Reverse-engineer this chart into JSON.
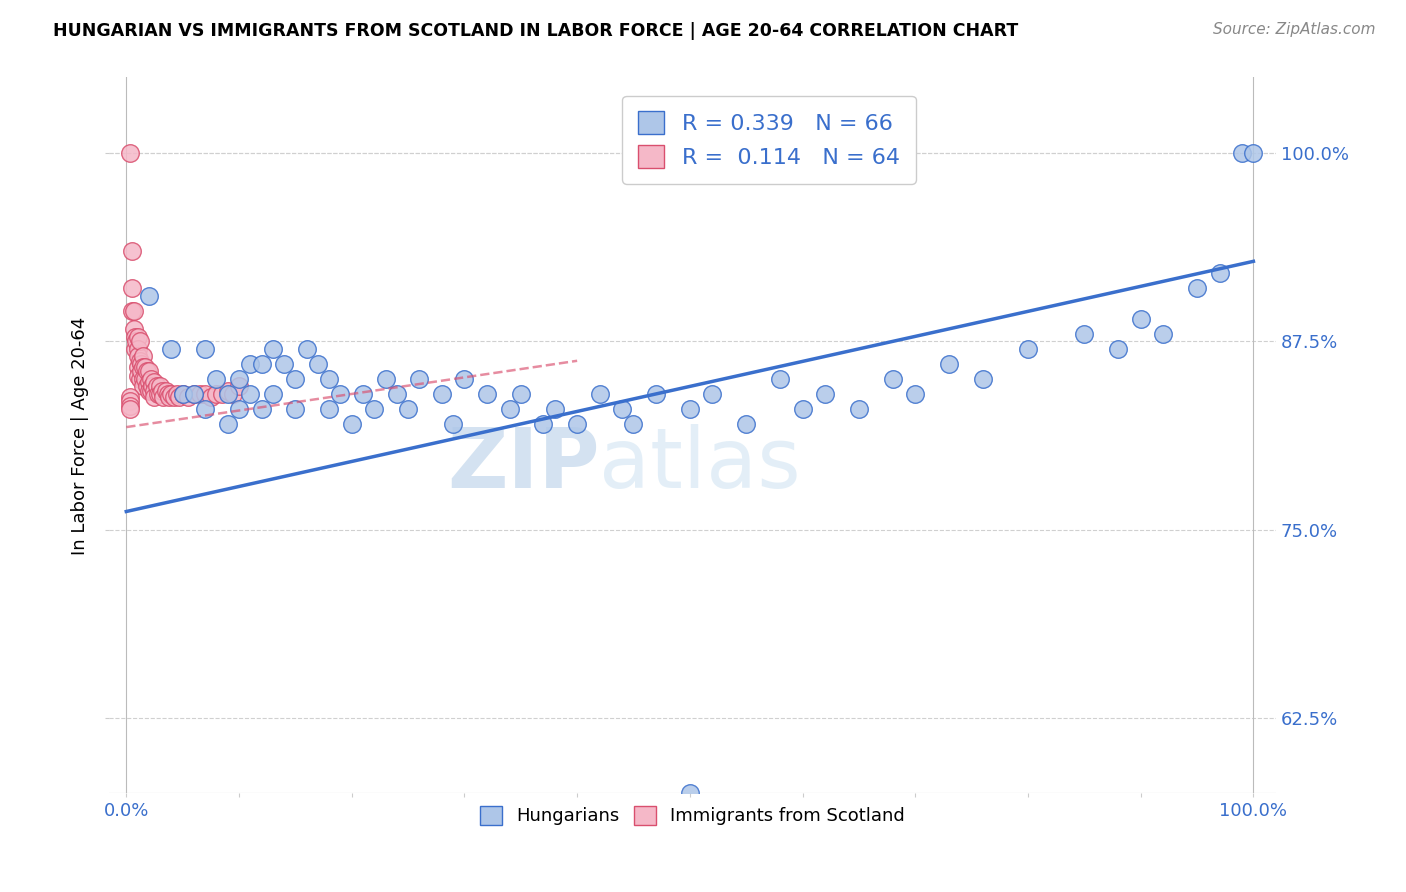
{
  "title": "HUNGARIAN VS IMMIGRANTS FROM SCOTLAND IN LABOR FORCE | AGE 20-64 CORRELATION CHART",
  "source": "Source: ZipAtlas.com",
  "ylabel": "In Labor Force | Age 20-64",
  "r_hungarian": 0.339,
  "n_hungarian": 66,
  "r_scotland": 0.114,
  "n_scotland": 64,
  "color_hungarian": "#aec6e8",
  "color_scotland": "#f5b8c8",
  "line_color_hungarian": "#3a6fcc",
  "line_color_scotland": "#d94f6e",
  "background_color": "#ffffff",
  "grid_color": "#d0d0d0",
  "watermark_zip": "ZIP",
  "watermark_atlas": "atlas",
  "yticks": [
    0.625,
    0.75,
    0.875,
    1.0
  ],
  "ytick_labels": [
    "62.5%",
    "75.0%",
    "87.5%",
    "100.0%"
  ],
  "ylim_low": 0.575,
  "ylim_high": 1.05,
  "xlim_low": -0.015,
  "xlim_high": 1.02,
  "hun_line_x0": 0.0,
  "hun_line_x1": 1.0,
  "hun_line_y0": 0.762,
  "hun_line_y1": 0.928,
  "sco_line_x0": 0.0,
  "sco_line_x1": 0.4,
  "sco_line_y0": 0.818,
  "sco_line_y1": 0.862,
  "hungarian_x": [
    0.02,
    0.04,
    0.05,
    0.06,
    0.07,
    0.07,
    0.08,
    0.09,
    0.09,
    0.1,
    0.1,
    0.11,
    0.11,
    0.12,
    0.12,
    0.13,
    0.13,
    0.14,
    0.15,
    0.15,
    0.16,
    0.17,
    0.18,
    0.18,
    0.19,
    0.2,
    0.21,
    0.22,
    0.23,
    0.24,
    0.25,
    0.26,
    0.28,
    0.29,
    0.3,
    0.32,
    0.34,
    0.35,
    0.37,
    0.38,
    0.4,
    0.42,
    0.44,
    0.45,
    0.47,
    0.5,
    0.52,
    0.55,
    0.58,
    0.6,
    0.62,
    0.65,
    0.68,
    0.7,
    0.73,
    0.76,
    0.8,
    0.85,
    0.88,
    0.9,
    0.92,
    0.95,
    0.97,
    0.99,
    1.0,
    0.5
  ],
  "hungarian_y": [
    0.905,
    0.87,
    0.84,
    0.84,
    0.87,
    0.83,
    0.85,
    0.84,
    0.82,
    0.85,
    0.83,
    0.86,
    0.84,
    0.86,
    0.83,
    0.87,
    0.84,
    0.86,
    0.85,
    0.83,
    0.87,
    0.86,
    0.85,
    0.83,
    0.84,
    0.82,
    0.84,
    0.83,
    0.85,
    0.84,
    0.83,
    0.85,
    0.84,
    0.82,
    0.85,
    0.84,
    0.83,
    0.84,
    0.82,
    0.83,
    0.82,
    0.84,
    0.83,
    0.82,
    0.84,
    0.83,
    0.84,
    0.82,
    0.85,
    0.83,
    0.84,
    0.83,
    0.85,
    0.84,
    0.86,
    0.85,
    0.87,
    0.88,
    0.87,
    0.89,
    0.88,
    0.91,
    0.92,
    1.0,
    1.0,
    0.575
  ],
  "scotland_x": [
    0.005,
    0.005,
    0.005,
    0.007,
    0.007,
    0.008,
    0.008,
    0.009,
    0.01,
    0.01,
    0.01,
    0.01,
    0.01,
    0.012,
    0.012,
    0.012,
    0.013,
    0.013,
    0.015,
    0.015,
    0.015,
    0.015,
    0.017,
    0.017,
    0.018,
    0.018,
    0.02,
    0.02,
    0.02,
    0.022,
    0.022,
    0.023,
    0.025,
    0.025,
    0.025,
    0.027,
    0.028,
    0.03,
    0.03,
    0.032,
    0.033,
    0.035,
    0.037,
    0.038,
    0.04,
    0.042,
    0.045,
    0.047,
    0.05,
    0.055,
    0.06,
    0.065,
    0.07,
    0.075,
    0.08,
    0.085,
    0.09,
    0.095,
    0.1,
    0.003,
    0.003,
    0.003,
    0.003,
    0.003
  ],
  "scotland_y": [
    0.935,
    0.91,
    0.895,
    0.895,
    0.883,
    0.878,
    0.87,
    0.875,
    0.878,
    0.87,
    0.865,
    0.858,
    0.852,
    0.875,
    0.862,
    0.85,
    0.86,
    0.855,
    0.865,
    0.858,
    0.85,
    0.845,
    0.858,
    0.85,
    0.855,
    0.845,
    0.855,
    0.848,
    0.842,
    0.85,
    0.842,
    0.845,
    0.848,
    0.842,
    0.838,
    0.845,
    0.84,
    0.845,
    0.84,
    0.842,
    0.838,
    0.842,
    0.84,
    0.838,
    0.84,
    0.838,
    0.84,
    0.838,
    0.84,
    0.838,
    0.84,
    0.84,
    0.84,
    0.838,
    0.84,
    0.84,
    0.842,
    0.84,
    0.845,
    0.838,
    0.835,
    0.832,
    0.83,
    1.0
  ]
}
